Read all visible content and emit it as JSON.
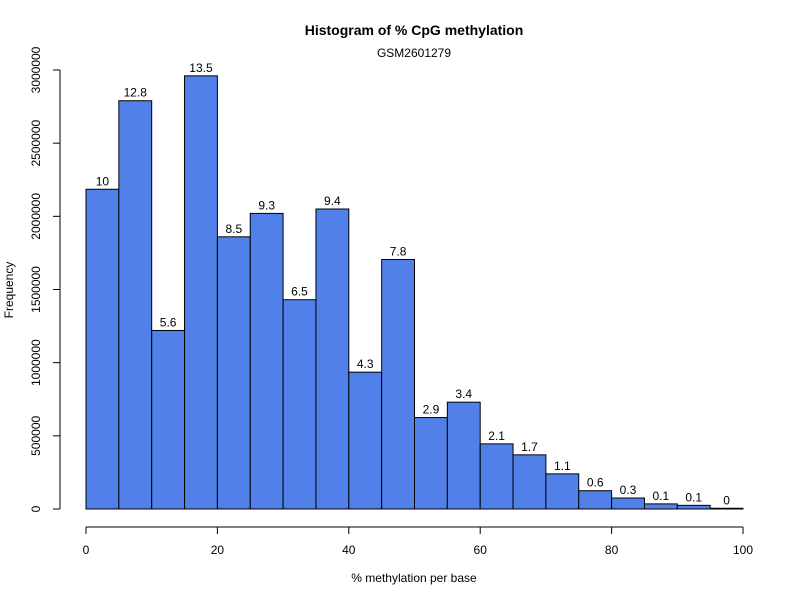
{
  "chart_data": {
    "type": "bar",
    "title": "Histogram of % CpG methylation",
    "subtitle": "GSM2601279",
    "xlabel": "% methylation per base",
    "ylabel": "Frequency",
    "xlim": [
      0,
      100
    ],
    "ylim": [
      0,
      3000000
    ],
    "x_ticks": [
      0,
      20,
      40,
      60,
      80,
      100
    ],
    "y_ticks": [
      0,
      500000,
      1000000,
      1500000,
      2000000,
      2500000,
      3000000
    ],
    "x_tick_labels": [
      "0",
      "20",
      "40",
      "60",
      "80",
      "100"
    ],
    "y_tick_labels": [
      "0",
      "500000",
      "1000000",
      "1500000",
      "2000000",
      "2500000",
      "3000000"
    ],
    "bar_color": "#5180e9",
    "bin_edges": [
      0,
      5,
      10,
      15,
      20,
      25,
      30,
      35,
      40,
      45,
      50,
      55,
      60,
      65,
      70,
      75,
      80,
      85,
      90,
      95,
      100
    ],
    "values": [
      2185000,
      2790000,
      1220000,
      2960000,
      1860000,
      2020000,
      1430000,
      2050000,
      935000,
      1705000,
      625000,
      730000,
      445000,
      370000,
      240000,
      125000,
      75000,
      35000,
      25000,
      5000
    ],
    "data_labels": [
      "10",
      "12.8",
      "5.6",
      "13.5",
      "8.5",
      "9.3",
      "6.5",
      "9.4",
      "4.3",
      "7.8",
      "2.9",
      "3.4",
      "2.1",
      "1.7",
      "1.1",
      "0.6",
      "0.3",
      "0.1",
      "0.1",
      "0"
    ],
    "grid": false,
    "legend": "none"
  }
}
